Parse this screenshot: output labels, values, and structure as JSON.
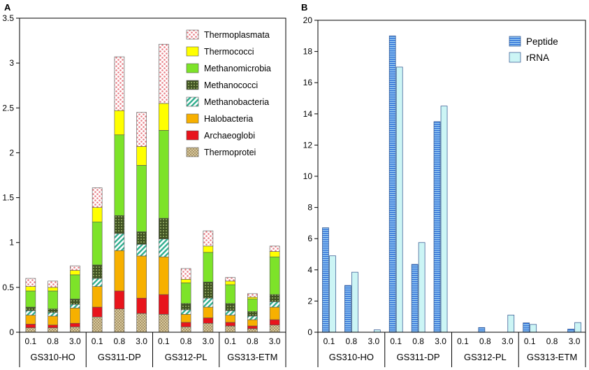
{
  "chart_data": [
    {
      "panel": "A",
      "type": "bar",
      "stacked": true,
      "panel_label": "A",
      "ylim": [
        0,
        3.5
      ],
      "yticks": [
        "0",
        "0.5",
        "1",
        "1.5",
        "2",
        "2.5",
        "3",
        "3.5"
      ],
      "groups": [
        "GS310-HO",
        "GS311-DP",
        "GS312-PL",
        "GS313-ETM"
      ],
      "categories": [
        "0.1",
        "0.8",
        "3.0",
        "0.1",
        "0.8",
        "3.0",
        "0.1",
        "0.8",
        "3.0",
        "0.1",
        "0.8",
        "3.0"
      ],
      "legend_position": "top-right",
      "series": [
        {
          "name": "Thermoprotei",
          "color": "#c8b68a",
          "pattern": "dots",
          "values": [
            0.05,
            0.05,
            0.06,
            0.17,
            0.26,
            0.21,
            0.2,
            0.06,
            0.1,
            0.07,
            0.04,
            0.08
          ]
        },
        {
          "name": "Archaeoglobi",
          "color": "#e8141c",
          "pattern": "solid",
          "values": [
            0.04,
            0.03,
            0.04,
            0.11,
            0.2,
            0.17,
            0.22,
            0.05,
            0.06,
            0.04,
            0.03,
            0.06
          ]
        },
        {
          "name": "Halobacteria",
          "color": "#f7b000",
          "pattern": "solid",
          "values": [
            0.1,
            0.1,
            0.17,
            0.23,
            0.45,
            0.47,
            0.42,
            0.09,
            0.12,
            0.08,
            0.07,
            0.14
          ]
        },
        {
          "name": "Methanobacteria",
          "color": "#66cdaa",
          "pattern": "hatch",
          "values": [
            0.05,
            0.04,
            0.04,
            0.09,
            0.19,
            0.13,
            0.2,
            0.05,
            0.1,
            0.05,
            0.04,
            0.06
          ]
        },
        {
          "name": "Methanococci",
          "color": "#556b2f",
          "pattern": "crosshatch",
          "values": [
            0.04,
            0.04,
            0.06,
            0.15,
            0.2,
            0.14,
            0.23,
            0.07,
            0.18,
            0.08,
            0.05,
            0.08
          ]
        },
        {
          "name": "Methanomicrobia",
          "color": "#7de329",
          "pattern": "solid",
          "values": [
            0.18,
            0.2,
            0.27,
            0.48,
            0.9,
            0.74,
            0.98,
            0.23,
            0.33,
            0.21,
            0.14,
            0.42
          ]
        },
        {
          "name": "Thermococci",
          "color": "#ffff00",
          "pattern": "solid",
          "values": [
            0.05,
            0.04,
            0.05,
            0.16,
            0.27,
            0.21,
            0.3,
            0.04,
            0.07,
            0.04,
            0.02,
            0.06
          ]
        },
        {
          "name": "Thermoplasmata",
          "color": "#f4a3a8",
          "pattern": "checker",
          "values": [
            0.09,
            0.07,
            0.05,
            0.22,
            0.6,
            0.38,
            0.66,
            0.12,
            0.17,
            0.04,
            0.04,
            0.06
          ]
        }
      ]
    },
    {
      "panel": "B",
      "type": "bar",
      "stacked": false,
      "panel_label": "B",
      "ylim": [
        0,
        20
      ],
      "yticks": [
        "0",
        "2",
        "4",
        "6",
        "8",
        "10",
        "12",
        "14",
        "16",
        "18",
        "20"
      ],
      "groups": [
        "GS310-HO",
        "GS311-DP",
        "GS312-PL",
        "GS313-ETM"
      ],
      "categories": [
        "0.1",
        "0.8",
        "3.0",
        "0.1",
        "0.8",
        "3.0",
        "0.1",
        "0.8",
        "3.0",
        "0.1",
        "0.8",
        "3.0"
      ],
      "legend_position": "top-right",
      "series": [
        {
          "name": "Peptide",
          "color": "#2e6fd8",
          "pattern": "hstripe",
          "values": [
            6.7,
            3.0,
            0.0,
            19.0,
            4.35,
            13.5,
            0.0,
            0.3,
            0.0,
            0.6,
            0.0,
            0.2
          ]
        },
        {
          "name": "rRNA",
          "color": "#ccf5f5",
          "pattern": "solid",
          "values": [
            4.9,
            3.85,
            0.15,
            17.0,
            5.75,
            14.5,
            0.0,
            0.0,
            1.1,
            0.5,
            0.0,
            0.62
          ]
        }
      ]
    }
  ]
}
